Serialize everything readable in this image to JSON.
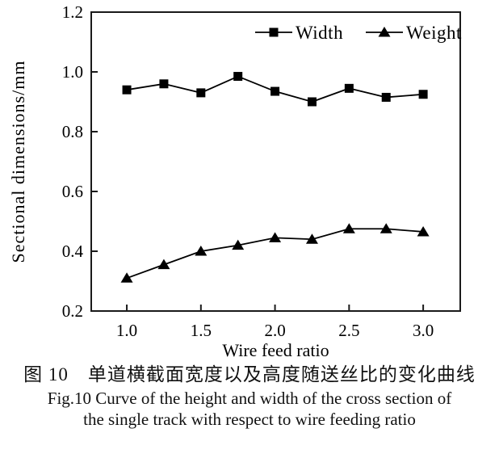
{
  "figure": {
    "background": "#ffffff",
    "ink_color": "#000000",
    "frame_color": "#1a1a1a"
  },
  "chart_data": {
    "type": "line",
    "title": "",
    "xlabel": "Wire feed ratio",
    "ylabel": "Sectional dimensions/mm",
    "x": [
      1.0,
      1.25,
      1.5,
      1.75,
      2.0,
      2.25,
      2.5,
      2.75,
      3.0
    ],
    "series": [
      {
        "name": "Width",
        "marker": "square",
        "color": "#000000",
        "values": [
          0.94,
          0.96,
          0.93,
          0.985,
          0.935,
          0.9,
          0.945,
          0.915,
          0.925
        ]
      },
      {
        "name": "Weight",
        "marker": "triangle",
        "color": "#000000",
        "values": [
          0.31,
          0.355,
          0.4,
          0.42,
          0.445,
          0.44,
          0.475,
          0.475,
          0.465
        ]
      }
    ],
    "xlim": [
      0.76,
      3.25
    ],
    "ylim": [
      0.2,
      1.2
    ],
    "x_ticks": [
      1.0,
      1.5,
      2.0,
      2.5,
      3.0
    ],
    "x_tick_labels": [
      "1.0",
      "1.5",
      "2.0",
      "2.5",
      "3.0"
    ],
    "y_ticks": [
      0.2,
      0.4,
      0.6,
      0.8,
      1.0,
      1.2
    ],
    "y_tick_labels": [
      "0.2",
      "0.4",
      "0.6",
      "0.8",
      "1.0",
      "1.2"
    ],
    "grid": false,
    "legend_position": "top-inside",
    "legend": [
      "Width",
      "Weight"
    ]
  },
  "caption": {
    "chinese": "图 10　单道横截面宽度以及高度随送丝比的变化曲线",
    "english_line1": "Fig.10 Curve of the height and width of the cross section of",
    "english_line2": "the single track with respect to wire feeding ratio"
  }
}
